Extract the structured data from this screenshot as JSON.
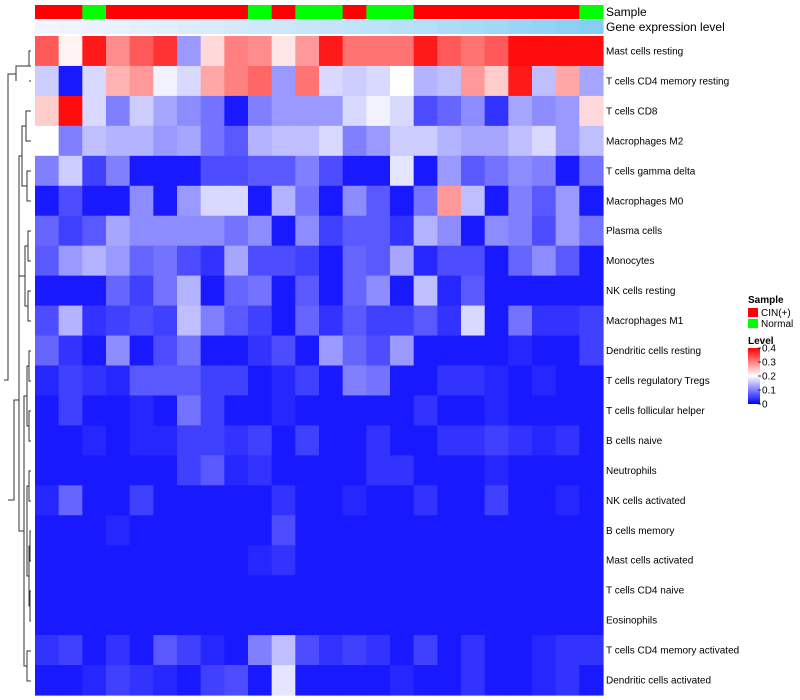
{
  "chart_data": {
    "type": "heatmap",
    "title": "",
    "annotations": {
      "sample_label": "Sample",
      "expression_label": "Gene expression level",
      "sample_groups": [
        "CIN(+)",
        "CIN(+)",
        "Normal",
        "CIN(+)",
        "CIN(+)",
        "CIN(+)",
        "CIN(+)",
        "CIN(+)",
        "CIN(+)",
        "Normal",
        "CIN(+)",
        "Normal",
        "Normal",
        "CIN(+)",
        "Normal",
        "Normal",
        "CIN(+)",
        "CIN(+)",
        "CIN(+)",
        "CIN(+)",
        "CIN(+)",
        "CIN(+)",
        "CIN(+)",
        "Normal"
      ],
      "expression_levels": [
        0.02,
        0.05,
        0.08,
        0.1,
        0.13,
        0.16,
        0.19,
        0.22,
        0.25,
        0.28,
        0.31,
        0.34,
        0.37,
        0.4,
        0.43,
        0.46,
        0.5,
        0.55,
        0.6,
        0.65,
        0.7,
        0.75,
        0.8,
        0.85
      ]
    },
    "rows": [
      "Mast cells resting",
      "T cells CD4 memory resting",
      "T cells CD8",
      "Macrophages M2",
      "T cells gamma delta",
      "Macrophages M0",
      "Plasma cells",
      "Monocytes",
      "NK cells resting",
      "Macrophages M1",
      "Dendritic cells resting",
      "T cells regulatory  Tregs",
      "T cells follicular helper",
      "B cells naive",
      "Neutrophils",
      "NK cells activated",
      "B cells memory",
      "Mast cells activated",
      "T cells CD4 naive",
      "Eosinophils",
      "T cells CD4 memory activated",
      "Dendritic cells activated"
    ],
    "values": [
      [
        0.33,
        0.21,
        0.38,
        0.29,
        0.33,
        0.36,
        0.12,
        0.23,
        0.3,
        0.29,
        0.22,
        0.28,
        0.38,
        0.31,
        0.31,
        0.31,
        0.38,
        0.33,
        0.31,
        0.33,
        0.39,
        0.39,
        0.39,
        0.39
      ],
      [
        0.16,
        0.02,
        0.17,
        0.26,
        0.28,
        0.19,
        0.17,
        0.27,
        0.3,
        0.32,
        0.12,
        0.31,
        0.17,
        0.16,
        0.17,
        0.2,
        0.14,
        0.15,
        0.28,
        0.24,
        0.38,
        0.15,
        0.27,
        0.13
      ],
      [
        0.24,
        0.39,
        0.17,
        0.1,
        0.16,
        0.13,
        0.11,
        0.09,
        0.02,
        0.1,
        0.12,
        0.12,
        0.12,
        0.17,
        0.19,
        0.17,
        0.06,
        0.08,
        0.11,
        0.04,
        0.13,
        0.11,
        0.12,
        0.23
      ],
      [
        0.2,
        0.1,
        0.15,
        0.14,
        0.14,
        0.12,
        0.13,
        0.09,
        0.07,
        0.14,
        0.15,
        0.15,
        0.17,
        0.1,
        0.12,
        0.16,
        0.16,
        0.14,
        0.13,
        0.13,
        0.15,
        0.17,
        0.12,
        0.15
      ],
      [
        0.1,
        0.16,
        0.05,
        0.1,
        0.02,
        0.02,
        0.02,
        0.06,
        0.06,
        0.07,
        0.07,
        0.1,
        0.06,
        0.02,
        0.02,
        0.18,
        0.02,
        0.12,
        0.07,
        0.09,
        0.11,
        0.1,
        0.02,
        0.09
      ],
      [
        0.02,
        0.06,
        0.02,
        0.02,
        0.11,
        0.02,
        0.12,
        0.17,
        0.17,
        0.02,
        0.14,
        0.09,
        0.02,
        0.11,
        0.07,
        0.02,
        0.09,
        0.28,
        0.15,
        0.02,
        0.1,
        0.07,
        0.12,
        0.02
      ],
      [
        0.08,
        0.05,
        0.07,
        0.13,
        0.11,
        0.11,
        0.11,
        0.11,
        0.09,
        0.11,
        0.02,
        0.11,
        0.05,
        0.07,
        0.07,
        0.04,
        0.14,
        0.11,
        0.02,
        0.11,
        0.1,
        0.06,
        0.12,
        0.09
      ],
      [
        0.07,
        0.12,
        0.14,
        0.12,
        0.08,
        0.09,
        0.06,
        0.04,
        0.13,
        0.06,
        0.06,
        0.05,
        0.02,
        0.08,
        0.07,
        0.13,
        0.03,
        0.06,
        0.06,
        0.02,
        0.08,
        0.11,
        0.07,
        0.02
      ],
      [
        0.02,
        0.02,
        0.02,
        0.08,
        0.05,
        0.09,
        0.14,
        0.02,
        0.08,
        0.09,
        0.02,
        0.07,
        0.02,
        0.08,
        0.11,
        0.02,
        0.15,
        0.03,
        0.07,
        0.02,
        0.02,
        0.02,
        0.02,
        0.02
      ],
      [
        0.06,
        0.14,
        0.04,
        0.05,
        0.06,
        0.05,
        0.15,
        0.1,
        0.07,
        0.05,
        0.02,
        0.08,
        0.04,
        0.07,
        0.05,
        0.05,
        0.07,
        0.04,
        0.17,
        0.02,
        0.09,
        0.04,
        0.04,
        0.05
      ],
      [
        0.08,
        0.04,
        0.02,
        0.11,
        0.02,
        0.06,
        0.09,
        0.02,
        0.02,
        0.04,
        0.06,
        0.02,
        0.12,
        0.08,
        0.06,
        0.12,
        0.02,
        0.02,
        0.02,
        0.02,
        0.03,
        0.02,
        0.02,
        0.05
      ],
      [
        0.03,
        0.05,
        0.04,
        0.03,
        0.07,
        0.07,
        0.07,
        0.05,
        0.05,
        0.02,
        0.03,
        0.05,
        0.02,
        0.1,
        0.09,
        0.02,
        0.02,
        0.04,
        0.04,
        0.03,
        0.02,
        0.03,
        0.02,
        0.02
      ],
      [
        0.02,
        0.05,
        0.02,
        0.02,
        0.03,
        0.02,
        0.09,
        0.05,
        0.02,
        0.02,
        0.03,
        0.02,
        0.02,
        0.02,
        0.02,
        0.02,
        0.04,
        0.02,
        0.02,
        0.03,
        0.02,
        0.02,
        0.02,
        0.02
      ],
      [
        0.02,
        0.02,
        0.03,
        0.02,
        0.03,
        0.03,
        0.05,
        0.05,
        0.04,
        0.05,
        0.02,
        0.05,
        0.02,
        0.02,
        0.04,
        0.02,
        0.02,
        0.04,
        0.04,
        0.05,
        0.04,
        0.03,
        0.04,
        0.02
      ],
      [
        0.02,
        0.02,
        0.02,
        0.02,
        0.02,
        0.02,
        0.05,
        0.07,
        0.03,
        0.04,
        0.02,
        0.02,
        0.02,
        0.02,
        0.04,
        0.04,
        0.02,
        0.02,
        0.02,
        0.03,
        0.02,
        0.02,
        0.02,
        0.02
      ],
      [
        0.03,
        0.08,
        0.02,
        0.02,
        0.05,
        0.02,
        0.02,
        0.02,
        0.02,
        0.02,
        0.04,
        0.02,
        0.02,
        0.03,
        0.02,
        0.02,
        0.04,
        0.02,
        0.02,
        0.05,
        0.02,
        0.02,
        0.03,
        0.02
      ],
      [
        0.02,
        0.02,
        0.02,
        0.03,
        0.02,
        0.02,
        0.02,
        0.02,
        0.02,
        0.02,
        0.06,
        0.02,
        0.02,
        0.02,
        0.02,
        0.02,
        0.02,
        0.02,
        0.02,
        0.02,
        0.02,
        0.02,
        0.02,
        0.02
      ],
      [
        0.02,
        0.02,
        0.02,
        0.02,
        0.02,
        0.02,
        0.02,
        0.02,
        0.02,
        0.03,
        0.04,
        0.02,
        0.02,
        0.02,
        0.02,
        0.02,
        0.02,
        0.02,
        0.02,
        0.02,
        0.02,
        0.02,
        0.02,
        0.02
      ],
      [
        0.02,
        0.02,
        0.02,
        0.02,
        0.02,
        0.02,
        0.02,
        0.02,
        0.02,
        0.02,
        0.02,
        0.02,
        0.02,
        0.02,
        0.02,
        0.02,
        0.02,
        0.02,
        0.02,
        0.02,
        0.02,
        0.02,
        0.02,
        0.02
      ],
      [
        0.02,
        0.02,
        0.02,
        0.02,
        0.02,
        0.02,
        0.02,
        0.02,
        0.02,
        0.02,
        0.02,
        0.02,
        0.02,
        0.02,
        0.02,
        0.02,
        0.02,
        0.02,
        0.02,
        0.02,
        0.02,
        0.02,
        0.02,
        0.02
      ],
      [
        0.04,
        0.05,
        0.02,
        0.04,
        0.02,
        0.07,
        0.05,
        0.03,
        0.02,
        0.1,
        0.15,
        0.06,
        0.04,
        0.05,
        0.04,
        0.02,
        0.05,
        0.02,
        0.04,
        0.02,
        0.02,
        0.03,
        0.04,
        0.04
      ],
      [
        0.02,
        0.02,
        0.03,
        0.05,
        0.04,
        0.03,
        0.02,
        0.05,
        0.06,
        0.02,
        0.18,
        0.02,
        0.02,
        0.02,
        0.02,
        0.03,
        0.02,
        0.02,
        0.04,
        0.02,
        0.02,
        0.03,
        0.04,
        0.02
      ]
    ],
    "color_scale": {
      "low": "#0000ff",
      "mid": "#ffffff",
      "high": "#ff0000",
      "min": 0,
      "mid_value": 0.2,
      "max": 0.4
    },
    "legend": {
      "sample_title": "Sample",
      "sample_items": [
        {
          "label": "CIN(+)",
          "color": "#ff0000"
        },
        {
          "label": "Normal",
          "color": "#00ff00"
        }
      ],
      "level_title": "Level",
      "level_ticks": [
        "0.4",
        "0.3",
        "0.2",
        "0.1",
        "0"
      ],
      "level_tick_values": [
        0.4,
        0.3,
        0.2,
        0.1,
        0.0
      ]
    },
    "annotation_colors": {
      "CIN(+)": "#ff0000",
      "Normal": "#00ff00",
      "expr_low": "#f5f5ff",
      "expr_high": "#72c8f0"
    }
  }
}
